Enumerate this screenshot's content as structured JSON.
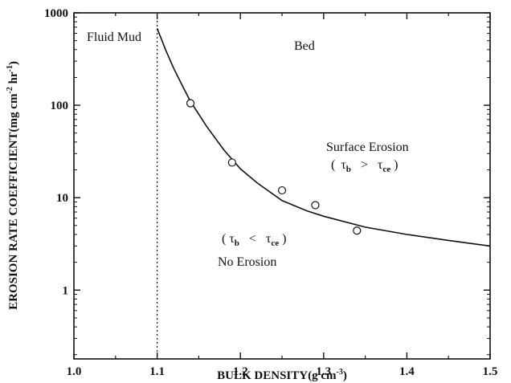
{
  "chart_data": {
    "type": "scatter",
    "xlabel": {
      "main": "BULK DENSITY(g cm",
      "sup": "-3",
      "tail": ")"
    },
    "ylabel": {
      "main": "EROSION RATE COEFFICIENT(mg cm",
      "sup1": "-2",
      "mid": " hr",
      "sup2": "-1",
      "tail": ")"
    },
    "xlim": [
      1.0,
      1.5
    ],
    "ylim": [
      0.18,
      1000
    ],
    "yscale": "log",
    "x_ticks": [
      1.0,
      1.1,
      1.2,
      1.3,
      1.4,
      1.5
    ],
    "x_tick_labels": [
      "1.0",
      "1.1",
      "1.2",
      "1.3",
      "1.4",
      "1.5"
    ],
    "y_ticks": [
      1,
      10,
      100,
      1000
    ],
    "y_tick_labels": [
      "1",
      "10",
      "100",
      "1000"
    ],
    "grid": false,
    "series": [
      {
        "marker": "open-circle",
        "x": [
          1.14,
          1.19,
          1.25,
          1.29,
          1.34
        ],
        "y": [
          105,
          24,
          12,
          8.3,
          4.4
        ]
      },
      {
        "line": "solid",
        "x": [
          1.1,
          1.11,
          1.12,
          1.13,
          1.14,
          1.16,
          1.18,
          1.2,
          1.22,
          1.25,
          1.28,
          1.3,
          1.35,
          1.4,
          1.45,
          1.5
        ],
        "y": [
          680,
          400,
          250,
          165,
          110,
          58,
          33,
          20.5,
          14.5,
          9.3,
          7.2,
          6.3,
          4.8,
          4.0,
          3.45,
          3.0
        ]
      }
    ],
    "vline": {
      "x": 1.1,
      "style": "dotted"
    },
    "annotations": {
      "fluid_mud": "Fluid Mud",
      "bed": "Bed",
      "surface_erosion": "Surface Erosion",
      "no_erosion": "No Erosion",
      "tau": "τ",
      "b": "b",
      "ce": "ce",
      "gt": ">",
      "lt": "<",
      "lparen": "(",
      "rparen": ")"
    }
  }
}
